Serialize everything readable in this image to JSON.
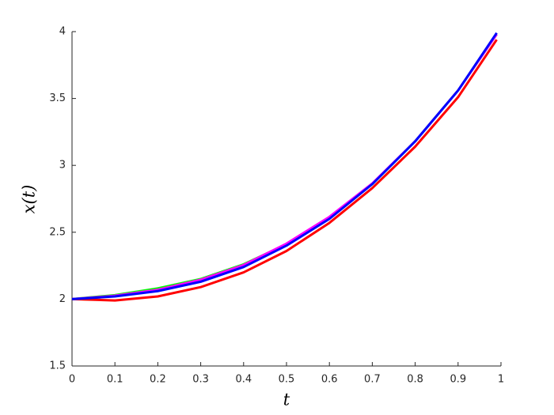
{
  "chart_data": {
    "type": "line",
    "x_label": "t",
    "y_label": "x(t)",
    "x": [
      0,
      0.1,
      0.2,
      0.3,
      0.4,
      0.5,
      0.6,
      0.7,
      0.8,
      0.9,
      0.99
    ],
    "series": [
      {
        "color": "#00ff00",
        "values": [
          2.0,
          2.03,
          2.08,
          2.15,
          2.26,
          2.41,
          2.61,
          2.86,
          3.18,
          3.56,
          3.98
        ]
      },
      {
        "color": "#ff00ff",
        "values": [
          2.0,
          2.025,
          2.07,
          2.145,
          2.255,
          2.415,
          2.615,
          2.865,
          3.18,
          3.56,
          3.98
        ]
      },
      {
        "color": "#ff0000",
        "values": [
          2.0,
          1.99,
          2.02,
          2.09,
          2.2,
          2.36,
          2.57,
          2.83,
          3.14,
          3.51,
          3.94
        ]
      },
      {
        "color": "#0000ff",
        "values": [
          2.0,
          2.02,
          2.06,
          2.13,
          2.24,
          2.4,
          2.6,
          2.86,
          3.18,
          3.56,
          3.99
        ]
      }
    ],
    "xlim": [
      0,
      1
    ],
    "xticks": [
      0,
      0.1,
      0.2,
      0.3,
      0.4,
      0.5,
      0.6,
      0.7,
      0.8,
      0.9,
      1
    ],
    "ylim": [
      1.5,
      4
    ],
    "yticks": [
      1.5,
      2,
      2.5,
      3,
      3.5,
      4
    ],
    "grid": false
  }
}
